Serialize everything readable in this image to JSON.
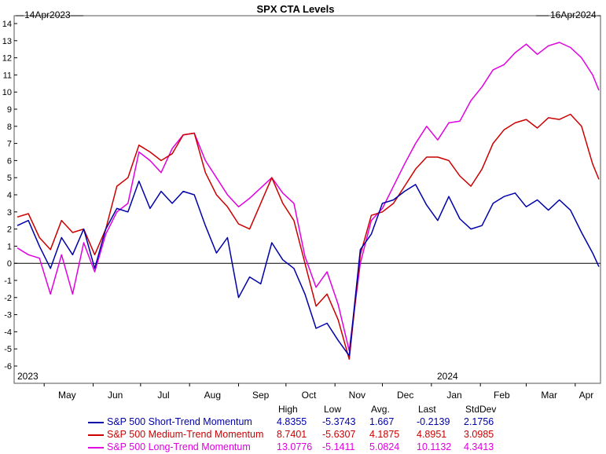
{
  "chart_data": {
    "type": "line",
    "title": "SPX CTA Levels",
    "date_range": {
      "start": "14Apr2023",
      "end": "16Apr2024"
    },
    "ylim": [
      -6,
      14
    ],
    "yticks": [
      -6,
      -5,
      -4,
      -3,
      -2,
      -1,
      0,
      1,
      2,
      3,
      4,
      5,
      6,
      7,
      8,
      9,
      10,
      11,
      12,
      13,
      14
    ],
    "month_labels": [
      "May",
      "Jun",
      "Jul",
      "Aug",
      "Sep",
      "Oct",
      "Nov",
      "Dec",
      "Jan",
      "Feb",
      "Mar",
      "Apr"
    ],
    "year_labels": [
      "2023",
      "2024"
    ],
    "grid": false,
    "stats_headers": [
      "High",
      "Low",
      "Avg.",
      "Last",
      "StdDev"
    ],
    "x": [
      "2023-04-14",
      "2023-04-21",
      "2023-04-28",
      "2023-05-05",
      "2023-05-12",
      "2023-05-19",
      "2023-05-26",
      "2023-06-02",
      "2023-06-09",
      "2023-06-16",
      "2023-06-23",
      "2023-06-30",
      "2023-07-07",
      "2023-07-14",
      "2023-07-21",
      "2023-07-28",
      "2023-08-04",
      "2023-08-11",
      "2023-08-18",
      "2023-08-25",
      "2023-09-01",
      "2023-09-08",
      "2023-09-15",
      "2023-09-22",
      "2023-09-29",
      "2023-10-06",
      "2023-10-13",
      "2023-10-20",
      "2023-10-27",
      "2023-11-03",
      "2023-11-10",
      "2023-11-17",
      "2023-11-24",
      "2023-12-01",
      "2023-12-08",
      "2023-12-15",
      "2023-12-22",
      "2023-12-29",
      "2024-01-05",
      "2024-01-12",
      "2024-01-19",
      "2024-01-26",
      "2024-02-02",
      "2024-02-09",
      "2024-02-16",
      "2024-02-23",
      "2024-03-01",
      "2024-03-08",
      "2024-03-15",
      "2024-03-22",
      "2024-03-29",
      "2024-04-05",
      "2024-04-12",
      "2024-04-16"
    ],
    "series": [
      {
        "name": "S&P 500 Short-Trend Momentum",
        "color": "#0000a8",
        "high": "4.8355",
        "low": "-5.3743",
        "avg": "1.667",
        "last": "-0.2139",
        "stddev": "2.1756",
        "values": [
          2.2,
          2.5,
          1.0,
          -0.3,
          1.5,
          0.5,
          2.0,
          -0.3,
          2.0,
          3.2,
          3.0,
          4.8,
          3.2,
          4.2,
          3.5,
          4.2,
          4.0,
          2.2,
          0.6,
          1.5,
          -2.0,
          -0.8,
          -1.2,
          1.2,
          0.2,
          -0.3,
          -1.8,
          -3.8,
          -3.5,
          -4.5,
          -5.4,
          0.8,
          1.7,
          3.5,
          3.7,
          4.2,
          4.6,
          3.4,
          2.5,
          3.9,
          2.6,
          2.0,
          2.2,
          3.5,
          3.9,
          4.1,
          3.3,
          3.7,
          3.1,
          3.7,
          3.1,
          1.8,
          0.6,
          -0.2
        ]
      },
      {
        "name": "S&P 500 Medium-Trend Momentum",
        "color": "#cc0000",
        "high": "8.7401",
        "low": "-5.6307",
        "avg": "4.1875",
        "last": "4.8951",
        "stddev": "3.0985",
        "values": [
          2.7,
          2.9,
          1.5,
          0.8,
          2.5,
          1.8,
          2.0,
          0.5,
          2.0,
          4.5,
          5.0,
          6.9,
          6.5,
          6.0,
          6.4,
          7.5,
          7.6,
          5.3,
          4.0,
          3.3,
          2.3,
          2.0,
          3.5,
          5.0,
          3.5,
          2.5,
          0.0,
          -2.5,
          -1.8,
          -3.3,
          -5.6,
          0.5,
          2.8,
          3.0,
          3.5,
          4.5,
          5.5,
          6.2,
          6.2,
          6.0,
          5.1,
          4.5,
          5.5,
          7.0,
          7.8,
          8.2,
          8.4,
          7.9,
          8.5,
          8.4,
          8.7,
          8.0,
          5.8,
          4.9
        ]
      },
      {
        "name": "S&P 500 Long-Trend Momentum",
        "color": "#e000e0",
        "high": "13.0776",
        "low": "-5.1411",
        "avg": "5.0824",
        "last": "10.1132",
        "stddev": "4.3413",
        "values": [
          0.9,
          0.5,
          0.3,
          -1.8,
          0.5,
          -1.8,
          1.2,
          -0.5,
          1.7,
          3.0,
          3.5,
          6.5,
          6.0,
          5.3,
          6.7,
          7.5,
          7.6,
          6.0,
          5.0,
          4.0,
          3.3,
          3.8,
          4.4,
          5.0,
          4.1,
          3.5,
          0.4,
          -1.4,
          -0.5,
          -2.4,
          -5.1,
          0.0,
          2.5,
          3.2,
          4.5,
          5.8,
          7.0,
          8.0,
          7.2,
          8.2,
          8.3,
          9.5,
          10.3,
          11.3,
          11.6,
          12.3,
          12.8,
          12.2,
          12.7,
          12.9,
          12.6,
          12.0,
          11.0,
          10.1
        ]
      }
    ]
  }
}
